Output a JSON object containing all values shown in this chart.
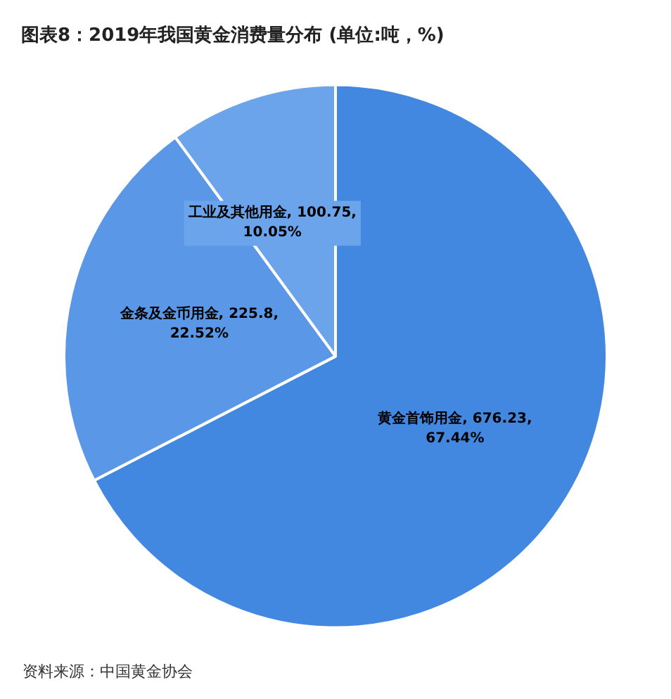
{
  "chart_data": {
    "type": "pie",
    "title": "图表8：2019年我国黄金消费量分布 (单位:吨，%)",
    "categories": [
      "黄金首饰用金",
      "金条及金币用金",
      "工业及其他用金"
    ],
    "values": [
      676.23,
      225.8,
      100.75
    ],
    "value_labels": [
      "676.23, 67.44%",
      "225.8, 22.52%",
      "100.75, 10.05%"
    ],
    "colors": [
      "#4287e0",
      "#5a97e6",
      "#6ba4eb"
    ],
    "legend": false,
    "annotations": [
      "资料来源：中国黄金协会"
    ]
  }
}
